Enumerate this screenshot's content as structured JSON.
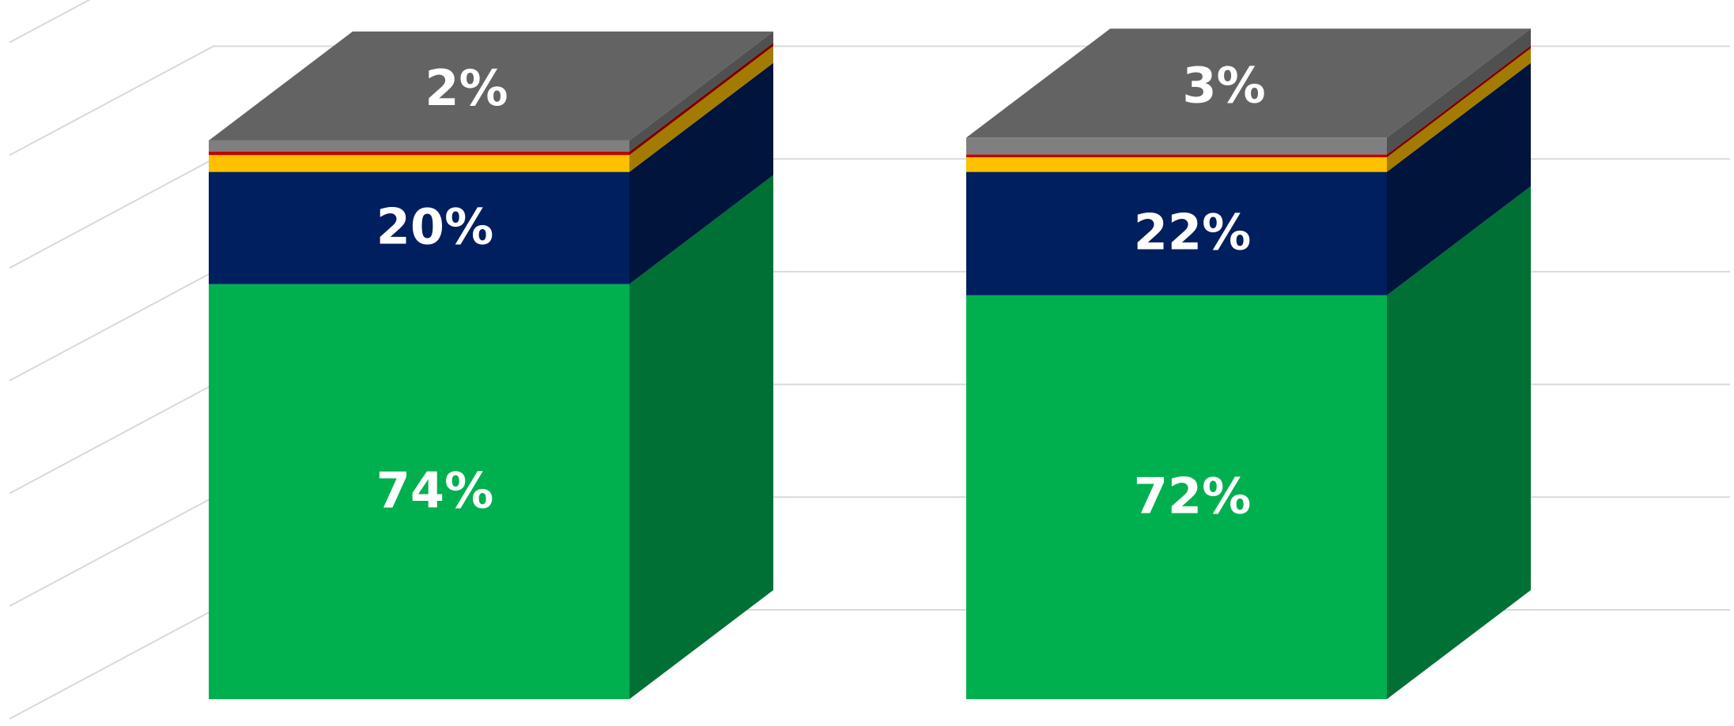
{
  "chart_data": {
    "type": "bar",
    "stacked": true,
    "three_d": true,
    "grid": true,
    "legend": "none",
    "ylim": [
      0,
      100
    ],
    "categories": [
      "",
      ""
    ],
    "series": [
      {
        "color": "#00b04f",
        "side_color": "#007035",
        "values": [
          74,
          72
        ],
        "labels": [
          "74%",
          "72%"
        ]
      },
      {
        "color": "#001f5f",
        "side_color": "#00143c",
        "values": [
          20,
          22
        ],
        "labels": [
          "20%",
          "22%"
        ]
      },
      {
        "color": "#ffc000",
        "side_color": "#a37b00",
        "values": [
          3,
          2.6
        ],
        "labels": [
          "",
          ""
        ]
      },
      {
        "color": "#c00000",
        "side_color": "#7a0000",
        "values": [
          0.6,
          0.5
        ],
        "labels": [
          "",
          ""
        ]
      },
      {
        "color": "#7f7f7f",
        "side_color": "#505050",
        "values": [
          2,
          3
        ],
        "labels": [
          "2%",
          "3%"
        ]
      }
    ]
  }
}
